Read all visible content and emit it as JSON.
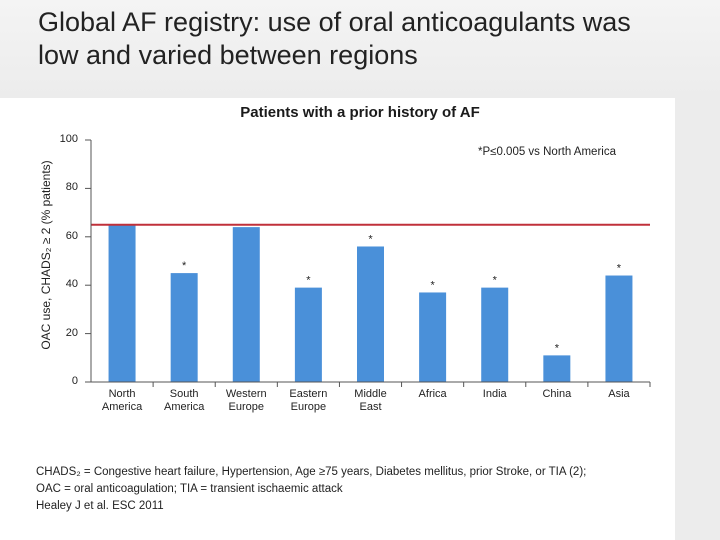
{
  "slide": {
    "title": "Global AF registry: use of oral anticoagulants was\nlow and varied between regions",
    "footnotes": [
      "CHADS₂ = Congestive heart failure, Hypertension, Age ≥75 years, Diabetes mellitus, prior Stroke, or TIA (2);",
      "OAC = oral anticoagulation; TIA = transient ischaemic attack",
      "Healey J et al. ESC 2011"
    ]
  },
  "colors": {
    "bar": "#4a90d9",
    "reference_line": "#c0303a",
    "axis": "#555555"
  },
  "chart_data": {
    "type": "bar",
    "title": "Patients with a prior history of AF",
    "ylabel": "OAC use, CHADS₂ ≥ 2 (% patients)",
    "xlabel": "",
    "ylim": [
      0,
      100
    ],
    "yticks": [
      0,
      20,
      40,
      60,
      80,
      100
    ],
    "categories": [
      "North\nAmerica",
      "South\nAmerica",
      "Western\nEurope",
      "Eastern\nEurope",
      "Middle\nEast",
      "Africa",
      "India",
      "China",
      "Asia"
    ],
    "values": [
      65,
      45,
      64,
      39,
      56,
      37,
      39,
      11,
      44
    ],
    "significant": [
      false,
      true,
      false,
      true,
      true,
      true,
      true,
      true,
      true
    ],
    "marker_symbol": "*",
    "reference_value": 65,
    "annotation": "*P≤0.005 vs North America",
    "grid": false
  }
}
